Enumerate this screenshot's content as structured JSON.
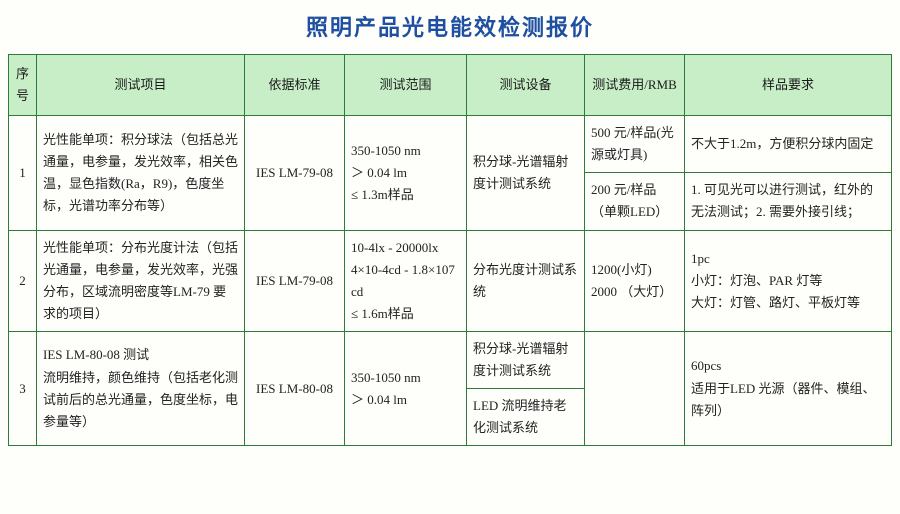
{
  "title": "照明产品光电能效检测报价",
  "headers": {
    "seq": "序号",
    "item": "测试项目",
    "std": "依据标准",
    "range": "测试范围",
    "equip": "测试设备",
    "fee": "测试费用/RMB",
    "sample": "样品要求"
  },
  "rows": {
    "r1": {
      "seq": "1",
      "item": "光性能单项：积分球法（包括总光通量，电参量，发光效率，相关色温，显色指数(Ra，R9)，色度坐标，光谱功率分布等）",
      "std": "IES LM-79-08",
      "range": "350-1050 nm\n＞ 0.04 lm\n≤ 1.3m样品",
      "equip": "积分球-光谱辐射度计测试系统",
      "fee1": "500 元/样品(光源或灯具)",
      "sample1": "不大于1.2m，方便积分球内固定",
      "fee2": "200 元/样品（单颗LED）",
      "sample2": "1. 可见光可以进行测试，红外的无法测试；2. 需要外接引线；"
    },
    "r2": {
      "seq": "2",
      "item": "光性能单项：分布光度计法（包括光通量，电参量，发光效率，光强分布，区域流明密度等LM-79 要求的项目）",
      "std": "IES LM-79-08",
      "range": "10-4lx - 20000lx\n4×10-4cd - 1.8×107cd\n≤ 1.6m样品",
      "equip": "分布光度计测试系统",
      "fee": "1200(小灯)\n2000 （大灯）",
      "sample": "1pc\n小灯：灯泡、PAR 灯等\n大灯：灯管、路灯、平板灯等"
    },
    "r3": {
      "seq": "3",
      "item": "IES LM-80-08 测试\n流明维持，颜色维持（包括老化测试前后的总光通量，色度坐标，电参量等）",
      "std": "IES LM-80-08",
      "range": "350-1050 nm\n＞ 0.04 lm",
      "equip1": "积分球-光谱辐射度计测试系统",
      "equip2": "LED 流明维持老化测试系统",
      "fee": "",
      "sample": "60pcs\n适用于LED 光源（器件、模组、阵列）"
    }
  }
}
